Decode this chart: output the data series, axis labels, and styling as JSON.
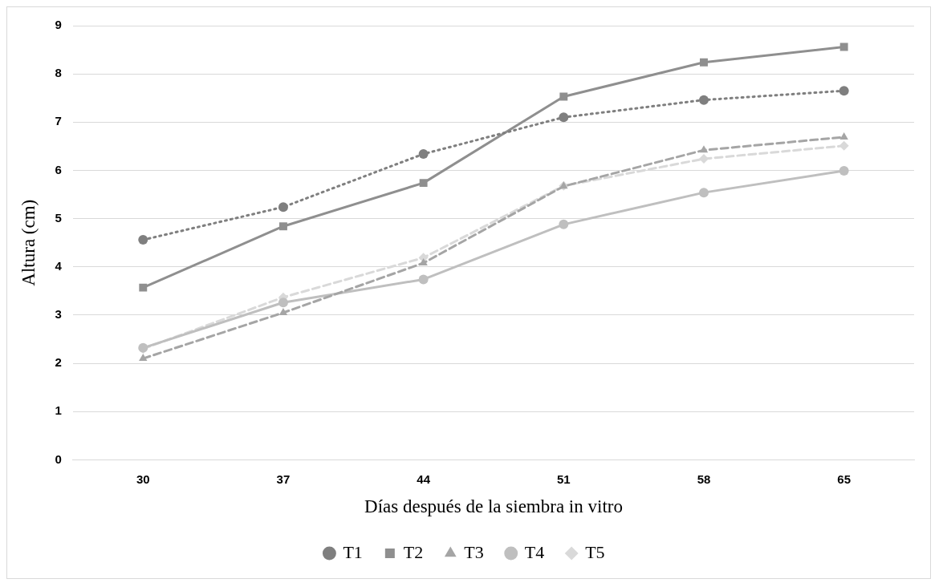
{
  "chart_data": {
    "type": "line",
    "xlabel": "Días después de la siembra in vitro",
    "ylabel": "Altura (cm)",
    "categories": [
      "30",
      "37",
      "44",
      "51",
      "58",
      "65"
    ],
    "series": [
      {
        "name": "T1",
        "color": "#7f7f7f",
        "marker": "circle",
        "line_style": "dotted",
        "values": [
          4.56,
          5.24,
          6.34,
          7.1,
          7.46,
          7.65
        ]
      },
      {
        "name": "T2",
        "color": "#8f8f8f",
        "marker": "square",
        "line_style": "solid",
        "values": [
          3.57,
          4.84,
          5.74,
          7.53,
          8.24,
          8.56
        ]
      },
      {
        "name": "T3",
        "color": "#a5a5a5",
        "marker": "triangle",
        "line_style": "dashed",
        "values": [
          2.1,
          3.05,
          4.08,
          5.67,
          6.42,
          6.69
        ]
      },
      {
        "name": "T4",
        "color": "#bfbfbf",
        "marker": "circle",
        "line_style": "solid",
        "values": [
          2.32,
          3.26,
          3.74,
          4.88,
          5.54,
          5.99
        ]
      },
      {
        "name": "T5",
        "color": "#d9d9d9",
        "marker": "diamond",
        "line_style": "dashed",
        "values": [
          2.3,
          3.37,
          4.19,
          5.68,
          6.24,
          6.51
        ]
      }
    ],
    "ylim": [
      0,
      9
    ],
    "yticks": [
      0,
      1,
      2,
      3,
      4,
      5,
      6,
      7,
      8,
      9
    ],
    "grid": "y",
    "legend": "bottom"
  }
}
